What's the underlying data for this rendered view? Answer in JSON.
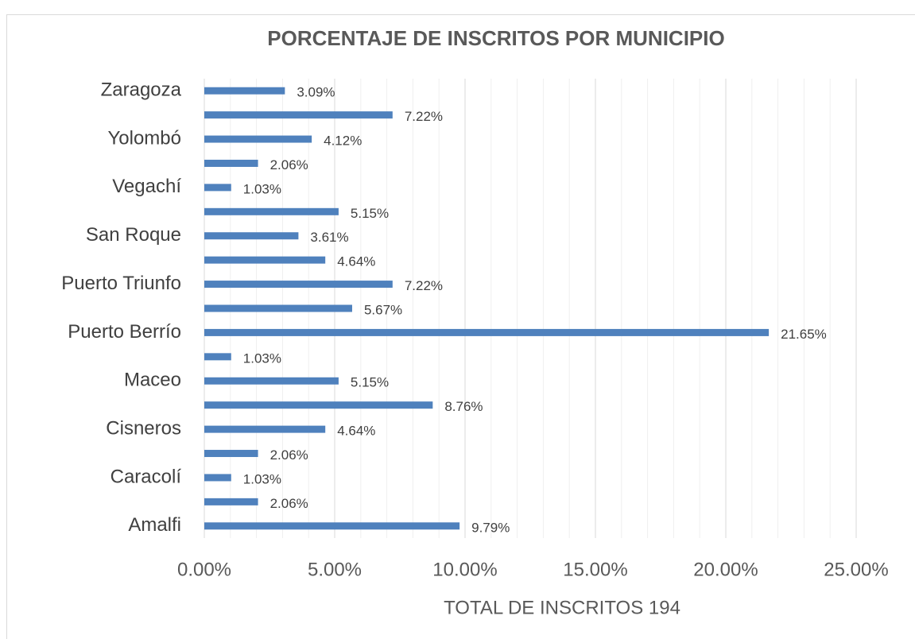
{
  "chart_data": {
    "type": "hbar",
    "title": "PORCENTAJE DE INSCRITOS POR MUNICIPIO",
    "x_axis_label": "TOTAL DE INSCRITOS 194",
    "categories": [
      "Amalfi",
      null,
      "Caracolí",
      null,
      "Cisneros",
      null,
      "Maceo",
      null,
      "Puerto Berrío",
      null,
      "Puerto Triunfo",
      null,
      "San Roque",
      null,
      "Vegachí",
      null,
      "Yolombó",
      null,
      "Zaragoza"
    ],
    "values": [
      9.79,
      2.06,
      1.03,
      2.06,
      4.64,
      8.76,
      5.15,
      1.03,
      21.65,
      5.67,
      7.22,
      4.64,
      3.61,
      5.15,
      1.03,
      2.06,
      4.12,
      7.22,
      3.09
    ],
    "value_labels": [
      "9.79%",
      "2.06%",
      "1.03%",
      "2.06%",
      "4.64%",
      "8.76%",
      "5.15%",
      "1.03%",
      "21.65%",
      "5.67%",
      "7.22%",
      "4.64%",
      "3.61%",
      "5.15%",
      "1.03%",
      "2.06%",
      "4.12%",
      "7.22%",
      "3.09%"
    ],
    "color": "#4f81bd",
    "xlim": [
      0,
      25
    ],
    "xticks": [
      {
        "value": 0,
        "label": "0.00%"
      },
      {
        "value": 5,
        "label": "5.00%"
      },
      {
        "value": 10,
        "label": "10.00%"
      },
      {
        "value": 15,
        "label": "15.00%"
      },
      {
        "value": 20,
        "label": "20.00%"
      },
      {
        "value": 25,
        "label": "25.00%"
      }
    ],
    "grid": true,
    "minor_grid": true
  }
}
